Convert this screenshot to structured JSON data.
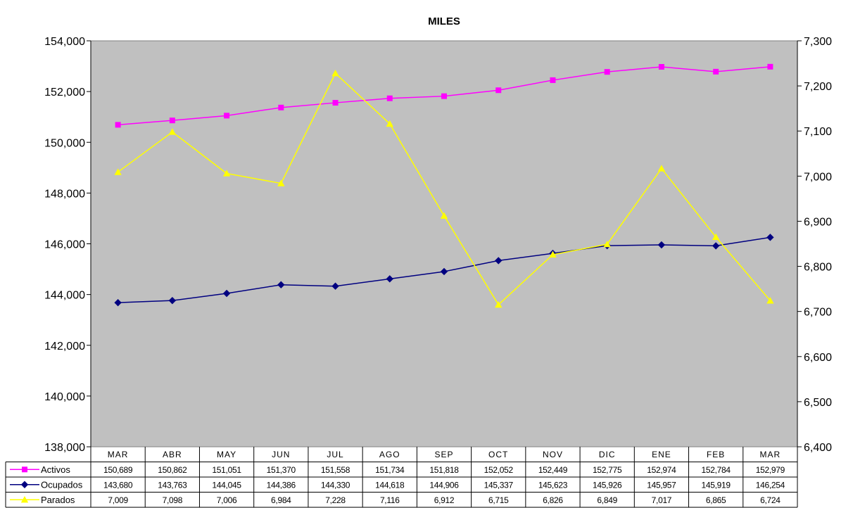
{
  "chart_data": {
    "type": "line",
    "title": "MILES",
    "categories": [
      "MAR",
      "ABR",
      "MAY",
      "JUN",
      "JUL",
      "AGO",
      "SEP",
      "OCT",
      "NOV",
      "DIC",
      "ENE",
      "FEB",
      "MAR"
    ],
    "y_left": {
      "min": 138000,
      "max": 154000,
      "step": 2000,
      "ticks": [
        "138,000",
        "140,000",
        "142,000",
        "144,000",
        "146,000",
        "148,000",
        "150,000",
        "152,000",
        "154,000"
      ]
    },
    "y_right": {
      "min": 6400,
      "max": 7300,
      "step": 100,
      "ticks": [
        "6,400",
        "6,500",
        "6,600",
        "6,700",
        "6,800",
        "6,900",
        "7,000",
        "7,100",
        "7,200",
        "7,300"
      ]
    },
    "plot_background": "#c0c0c0",
    "gridlines": false,
    "legend": "data-table-below",
    "series": [
      {
        "name": "Activos",
        "axis": "left",
        "color": "#ff00ff",
        "marker": "square",
        "values": [
          150689,
          150862,
          151051,
          151370,
          151558,
          151734,
          151818,
          152052,
          152449,
          152775,
          152974,
          152784,
          152979
        ],
        "labels": [
          "150,689",
          "150,862",
          "151,051",
          "151,370",
          "151,558",
          "151,734",
          "151,818",
          "152,052",
          "152,449",
          "152,775",
          "152,974",
          "152,784",
          "152,979"
        ]
      },
      {
        "name": "Ocupados",
        "axis": "left",
        "color": "#000080",
        "marker": "diamond",
        "values": [
          143680,
          143763,
          144045,
          144386,
          144330,
          144618,
          144906,
          145337,
          145623,
          145926,
          145957,
          145919,
          146254
        ],
        "labels": [
          "143,680",
          "143,763",
          "144,045",
          "144,386",
          "144,330",
          "144,618",
          "144,906",
          "145,337",
          "145,623",
          "145,926",
          "145,957",
          "145,919",
          "146,254"
        ]
      },
      {
        "name": "Parados",
        "axis": "right",
        "color": "#ffff00",
        "marker": "triangle",
        "values": [
          7009,
          7098,
          7006,
          6984,
          7228,
          7116,
          6912,
          6715,
          6826,
          6849,
          7017,
          6865,
          6724
        ],
        "labels": [
          "7,009",
          "7,098",
          "7,006",
          "6,984",
          "7,228",
          "7,116",
          "6,912",
          "6,715",
          "6,826",
          "6,849",
          "7,017",
          "6,865",
          "6,724"
        ]
      }
    ]
  }
}
